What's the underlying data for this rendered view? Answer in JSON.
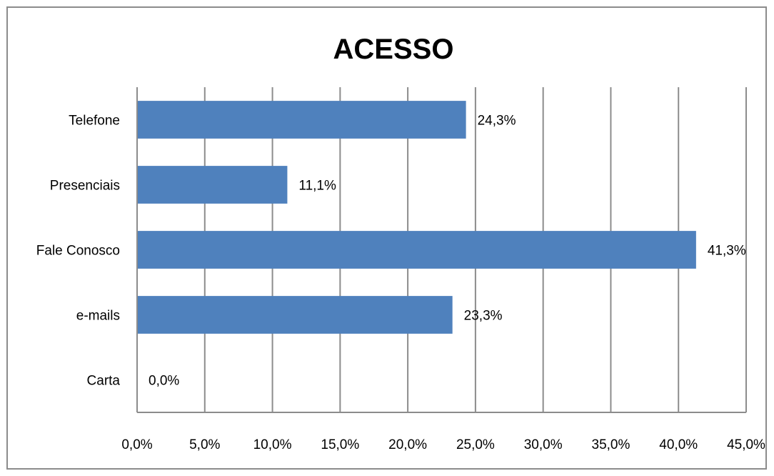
{
  "chart_data": {
    "type": "bar",
    "orientation": "horizontal",
    "title": "ACESSO",
    "categories": [
      "Telefone",
      "Presenciais",
      "Fale Conosco",
      "e-mails",
      "Carta"
    ],
    "values": [
      24.3,
      11.1,
      41.3,
      23.3,
      0.0
    ],
    "data_labels": [
      "24,3%",
      "11,1%",
      "41,3%",
      "23,3%",
      "0,0%"
    ],
    "xlim": [
      0,
      45
    ],
    "xticks": [
      0,
      5,
      10,
      15,
      20,
      25,
      30,
      35,
      40,
      45
    ],
    "xtick_labels": [
      "0,0%",
      "5,0%",
      "10,0%",
      "15,0%",
      "20,0%",
      "25,0%",
      "30,0%",
      "35,0%",
      "40,0%",
      "45,0%"
    ],
    "grid": "vertical",
    "legend": "none",
    "bar_color": "#4F81BD",
    "grid_color": "#8C8C8C"
  }
}
